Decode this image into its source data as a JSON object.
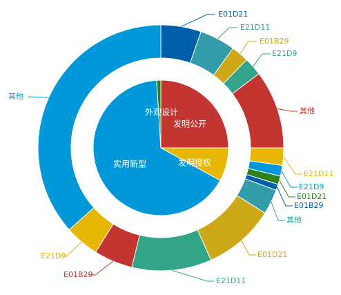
{
  "chart_data": {
    "type": "pie",
    "subtype": "nested-donut",
    "inner": {
      "slices": [
        {
          "label": "发明公开",
          "value": 25,
          "color": "#c23531"
        },
        {
          "label": "发明授权",
          "value": 8,
          "color": "#e6b600"
        },
        {
          "label": "实用新型",
          "value": 66,
          "color": "#0098d9"
        },
        {
          "label": "外观设计",
          "value": 1,
          "color": "#2b821d"
        }
      ]
    },
    "outer": {
      "slices": [
        {
          "label": "E01D21",
          "value": 5.3,
          "color": "#005eaa"
        },
        {
          "label": "E21D11",
          "value": 4.7,
          "color": "#339ca8"
        },
        {
          "label": "E01B29",
          "value": 2.3,
          "color": "#cda819"
        },
        {
          "label": "E21D9",
          "value": 2.4,
          "color": "#32a487"
        },
        {
          "label": "其他",
          "value": 10.3,
          "color": "#c23531"
        },
        {
          "label": "E21D11",
          "value": 2.3,
          "color": "#e6b600"
        },
        {
          "label": "E21D9",
          "value": 1.4,
          "color": "#0098d9"
        },
        {
          "label": "E01D21",
          "value": 1.1,
          "color": "#2b821d"
        },
        {
          "label": "E01B29",
          "value": 0.8,
          "color": "#005eaa"
        },
        {
          "label": "其他",
          "value": 3.3,
          "color": "#339ca8"
        },
        {
          "label": "E01D21",
          "value": 9.4,
          "color": "#cda819"
        },
        {
          "label": "E21D11",
          "value": 10.5,
          "color": "#32a487"
        },
        {
          "label": "E01B29",
          "value": 5.1,
          "color": "#c23531"
        },
        {
          "label": "E21D9",
          "value": 4.5,
          "color": "#e6b600"
        },
        {
          "label": "其他",
          "value": 36.6,
          "color": "#0098d9"
        }
      ]
    }
  }
}
